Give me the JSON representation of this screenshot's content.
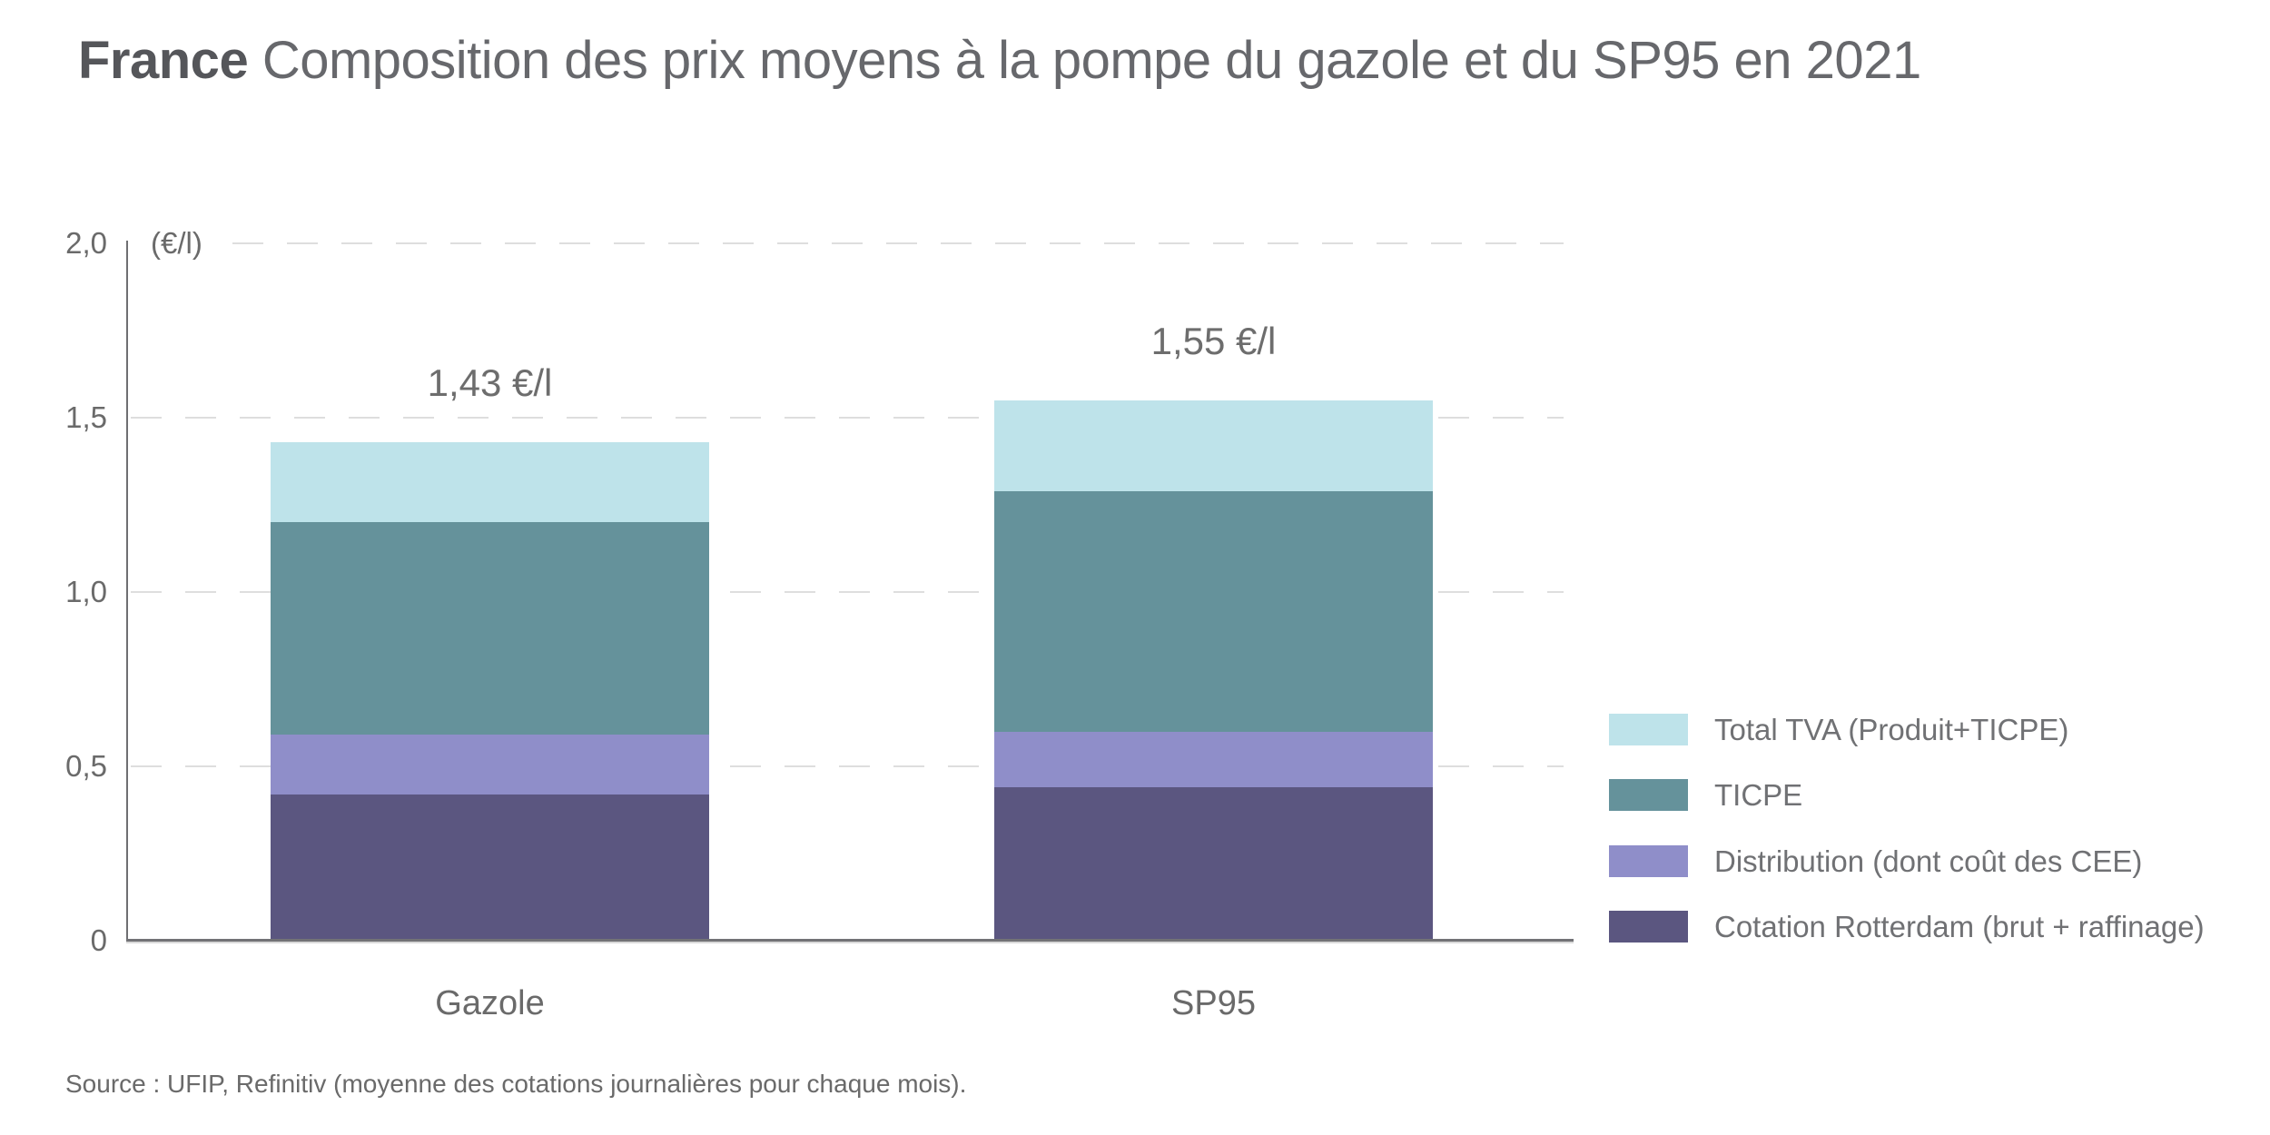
{
  "title": {
    "bold": "France",
    "rest": " Composition des prix moyens à la pompe du gazole et du SP95 en 2021"
  },
  "source_note": "Source : UFIP, Refinitiv (moyenne des cotations journalières pour chaque mois).",
  "chart_data": {
    "type": "bar",
    "stacked": true,
    "title": "France Composition des prix moyens à la pompe du gazole et du SP95 en 2021",
    "unit_label": "(€/l)",
    "ylabel": "€/l",
    "ylim": [
      0,
      2.0
    ],
    "grid": "horizontal dashed",
    "legend_position": "right",
    "categories": [
      "Gazole",
      "SP95"
    ],
    "series": [
      {
        "name": "Cotation Rotterdam (brut + raffinage)",
        "color": "#5b5680",
        "values": [
          0.42,
          0.44
        ]
      },
      {
        "name": "Distribution (dont coût des CEE)",
        "color": "#8f8ec9",
        "values": [
          0.17,
          0.16
        ]
      },
      {
        "name": "TICPE",
        "color": "#65929b",
        "values": [
          0.61,
          0.69
        ]
      },
      {
        "name": "Total TVA (Produit+TICPE)",
        "color": "#bee3ea",
        "values": [
          0.23,
          0.26
        ]
      }
    ],
    "totals": [
      1.43,
      1.55
    ],
    "total_labels": [
      "1,43 €/l",
      "1,55 €/l"
    ],
    "yticks": [
      {
        "v": 0.0,
        "label": "0"
      },
      {
        "v": 0.5,
        "label": "0,5"
      },
      {
        "v": 1.0,
        "label": "1,0"
      },
      {
        "v": 1.5,
        "label": "1,5"
      },
      {
        "v": 2.0,
        "label": "2,0"
      }
    ]
  }
}
